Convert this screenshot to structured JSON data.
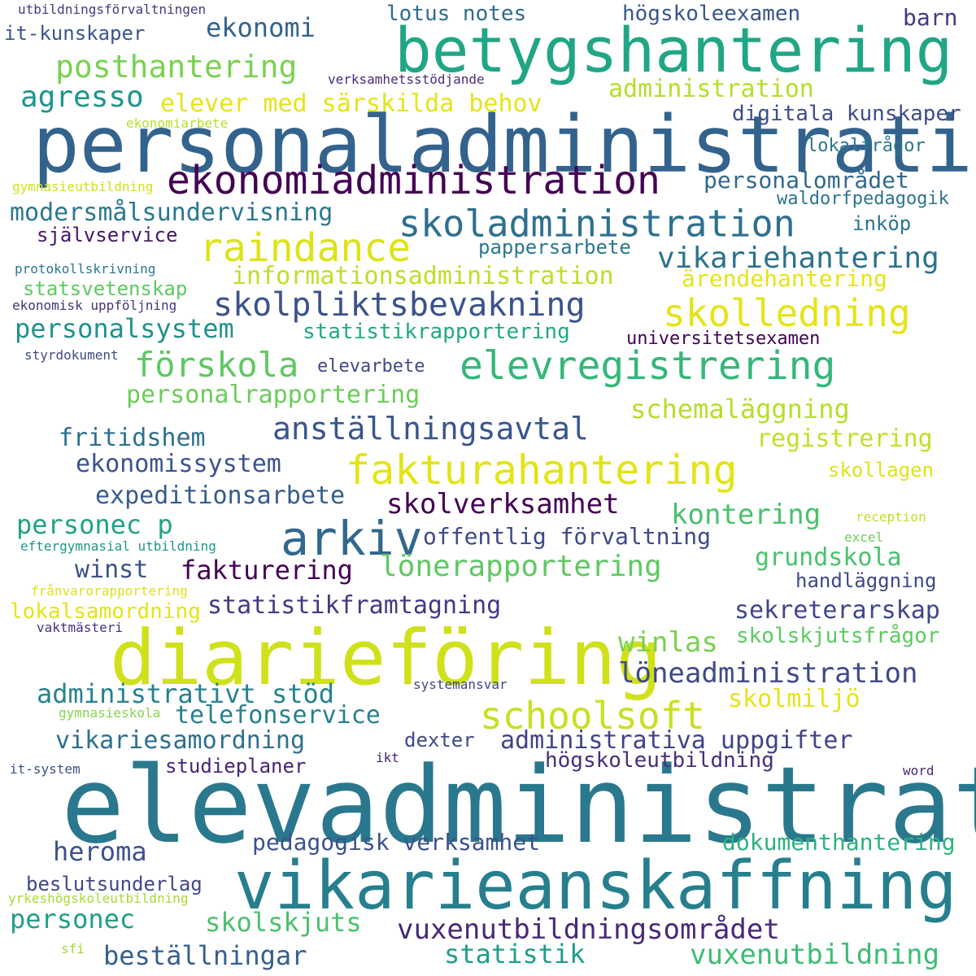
{
  "words": [
    {
      "text": "elevadministration",
      "color": "#2a788e"
    },
    {
      "text": "personaladministration",
      "color": "#33638d"
    },
    {
      "text": "diarieföring",
      "color": "#d0e11c"
    },
    {
      "text": "vikarieanskaffning",
      "color": "#277f8e"
    },
    {
      "text": "betygshantering",
      "color": "#21a685"
    },
    {
      "text": "ekonomiadministration",
      "color": "#440154"
    },
    {
      "text": "arkiv",
      "color": "#31688e"
    },
    {
      "text": "fakturahantering",
      "color": "#e2e418"
    },
    {
      "text": "skoladministration",
      "color": "#2d708e"
    },
    {
      "text": "raindance",
      "color": "#dde318"
    },
    {
      "text": "skolledning",
      "color": "#e5e419"
    },
    {
      "text": "elevregistrering",
      "color": "#35b779"
    },
    {
      "text": "schoolsoft",
      "color": "#c8e020"
    },
    {
      "text": "posthantering",
      "color": "#7ad151"
    },
    {
      "text": "skolpliktsbevakning",
      "color": "#3b528b"
    },
    {
      "text": "vuxenutbildningsområdet",
      "color": "#482878"
    },
    {
      "text": "vikariehantering",
      "color": "#2c728e"
    },
    {
      "text": "förskola",
      "color": "#5ec962"
    },
    {
      "text": "löneadministration",
      "color": "#3e4989"
    },
    {
      "text": "anställningsavtal",
      "color": "#39568c"
    },
    {
      "text": "skolverksamhet",
      "color": "#440154"
    },
    {
      "text": "vuxenutbildning",
      "color": "#3fbc73"
    },
    {
      "text": "lönerapportering",
      "color": "#5ec962"
    },
    {
      "text": "administrativt stöd",
      "color": "#26828e"
    },
    {
      "text": "statistikframtagning",
      "color": "#443983"
    },
    {
      "text": "ekonomi",
      "color": "#33638d"
    },
    {
      "text": "agresso",
      "color": "#1f958b"
    },
    {
      "text": "elever med särskilda behov",
      "color": "#e5e419"
    },
    {
      "text": "administration",
      "color": "#b5de2b"
    },
    {
      "text": "informationsadministration",
      "color": "#bddf26"
    },
    {
      "text": "personalsystem",
      "color": "#21918c"
    },
    {
      "text": "kontering",
      "color": "#4ac16d"
    },
    {
      "text": "winlas",
      "color": "#7ad151"
    },
    {
      "text": "administrativa uppgifter",
      "color": "#414487"
    },
    {
      "text": "schemaläggning",
      "color": "#b5de2b"
    },
    {
      "text": "personalrapportering",
      "color": "#6ccd5a"
    },
    {
      "text": "ekonomissystem",
      "color": "#3b528b"
    },
    {
      "text": "expeditionsarbete",
      "color": "#365c8d"
    },
    {
      "text": "offentlig förvaltning",
      "color": "#3e4a89"
    },
    {
      "text": "fakturering",
      "color": "#440154"
    },
    {
      "text": "winst",
      "color": "#3b528b"
    },
    {
      "text": "personec p",
      "color": "#20a386"
    },
    {
      "text": "fritidshem",
      "color": "#2d708e"
    },
    {
      "text": "registrering",
      "color": "#c2df23"
    },
    {
      "text": "grundskola",
      "color": "#4ac16d"
    },
    {
      "text": "sekreterarskap",
      "color": "#404688"
    },
    {
      "text": "modersmålsundervisning",
      "color": "#2a788e"
    },
    {
      "text": "personalområdet",
      "color": "#31688e"
    },
    {
      "text": "vikariesamordning",
      "color": "#2d708e"
    },
    {
      "text": "telefonservice",
      "color": "#27808e"
    },
    {
      "text": "dokumenthantering",
      "color": "#2db27d"
    },
    {
      "text": "pedagogisk verksamhet",
      "color": "#3b528b"
    },
    {
      "text": "heroma",
      "color": "#3b528b"
    },
    {
      "text": "personec",
      "color": "#1fa088"
    },
    {
      "text": "skolskjuts",
      "color": "#4ac16d"
    },
    {
      "text": "beställningar",
      "color": "#355f8d"
    },
    {
      "text": "statistik",
      "color": "#1f9e89"
    },
    {
      "text": "skolmiljö",
      "color": "#e5e419"
    },
    {
      "text": "högskoleutbildning",
      "color": "#472f7d"
    },
    {
      "text": "statistikrapportering",
      "color": "#22a884"
    },
    {
      "text": "ärendehantering",
      "color": "#e5e419"
    },
    {
      "text": "skolskjutsfrågor",
      "color": "#5ec962"
    },
    {
      "text": "it-kunskaper",
      "color": "#39568c"
    },
    {
      "text": "lotus notes",
      "color": "#2f6c8e"
    },
    {
      "text": "högskoleexamen",
      "color": "#39568c"
    },
    {
      "text": "barn",
      "color": "#443983"
    },
    {
      "text": "digitala kunskaper",
      "color": "#3e4c8a"
    },
    {
      "text": "lokalfrågor",
      "color": "#2a778e"
    },
    {
      "text": "waldorfpedagogik",
      "color": "#2b748e"
    },
    {
      "text": "inköp",
      "color": "#2c738e"
    },
    {
      "text": "självservice",
      "color": "#481668"
    },
    {
      "text": "pappersarbete",
      "color": "#2a788e"
    },
    {
      "text": "statsvetenskap",
      "color": "#5ec962"
    },
    {
      "text": "universitetsexamen",
      "color": "#440154"
    },
    {
      "text": "elevarbete",
      "color": "#3e4989"
    },
    {
      "text": "skollagen",
      "color": "#dde318"
    },
    {
      "text": "lokalsamordning",
      "color": "#e5e419"
    },
    {
      "text": "handläggning",
      "color": "#3e4989"
    },
    {
      "text": "dexter",
      "color": "#3e4a89"
    },
    {
      "text": "studieplaner",
      "color": "#482475"
    },
    {
      "text": "beslutsunderlag",
      "color": "#3f4889"
    },
    {
      "text": "utbildningsförvaltningen",
      "color": "#443a83"
    },
    {
      "text": "verksamhetsstödjande",
      "color": "#472d7b"
    },
    {
      "text": "ekonomiarbete",
      "color": "#b8de29"
    },
    {
      "text": "gymnasieutbildning",
      "color": "#d2e21b"
    },
    {
      "text": "protokollskrivning",
      "color": "#2a788e"
    },
    {
      "text": "ekonomisk uppföljning",
      "color": "#46337e"
    },
    {
      "text": "styrdokument",
      "color": "#3e4989"
    },
    {
      "text": "reception",
      "color": "#c2df23"
    },
    {
      "text": "excel",
      "color": "#6ccd5a"
    },
    {
      "text": "eftergymnasial utbildning",
      "color": "#1f978b"
    },
    {
      "text": "frånvarorapportering",
      "color": "#dde318"
    },
    {
      "text": "vaktmästeri",
      "color": "#46327e"
    },
    {
      "text": "systemansvar",
      "color": "#3f4788"
    },
    {
      "text": "gymnasieskola",
      "color": "#86d549"
    },
    {
      "text": "it-system",
      "color": "#3b528b"
    },
    {
      "text": "ikt",
      "color": "#482173"
    },
    {
      "text": "word",
      "color": "#482878"
    },
    {
      "text": "yrkeshögskoleutbildning",
      "color": "#a8db34"
    },
    {
      "text": "sfi",
      "color": "#a0da39"
    }
  ]
}
